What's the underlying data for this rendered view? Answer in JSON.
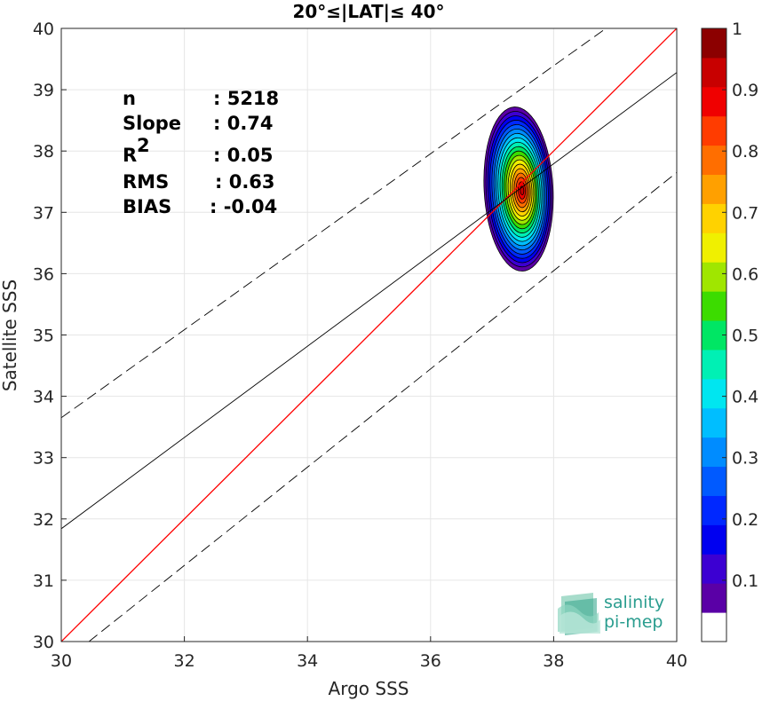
{
  "chart_data": {
    "type": "contour",
    "title": "20°≤|LAT|≤ 40°",
    "xlabel": "Argo SSS",
    "ylabel": "Satellite SSS",
    "xlim": [
      30,
      40
    ],
    "ylim": [
      30,
      40
    ],
    "xticks": [
      "30",
      "32",
      "34",
      "36",
      "38",
      "40"
    ],
    "yticks": [
      "30",
      "31",
      "32",
      "33",
      "34",
      "35",
      "36",
      "37",
      "38",
      "39",
      "40"
    ],
    "grid": true,
    "lines": [
      {
        "role": "identity",
        "color": "#ff0000",
        "style": "solid",
        "slope": 1,
        "intercept": 0
      },
      {
        "role": "regression",
        "color": "#000000",
        "style": "solid",
        "slope": 0.74,
        "points": [
          [
            30,
            31.84
          ],
          [
            40,
            39.28
          ]
        ]
      },
      {
        "role": "upper-bound",
        "color": "#000000",
        "style": "dashed",
        "points": [
          [
            30,
            33.65
          ],
          [
            38.85,
            40
          ]
        ]
      },
      {
        "role": "lower-bound",
        "color": "#000000",
        "style": "dashed",
        "points": [
          [
            30.45,
            30
          ],
          [
            40,
            37.65
          ]
        ]
      }
    ],
    "density": {
      "center": [
        37.43,
        37.38
      ],
      "outer_extent": {
        "x": [
          36.73,
          37.85
        ],
        "y": [
          36.0,
          38.68
        ]
      },
      "levels": [
        0.05,
        0.1,
        0.15,
        0.2,
        0.25,
        0.3,
        0.35,
        0.4,
        0.45,
        0.5,
        0.55,
        0.6,
        0.65,
        0.7,
        0.75,
        0.8,
        0.85,
        0.9,
        0.95
      ],
      "shown_levels": [
        0.1,
        0.2,
        0.3,
        0.4,
        0.5,
        0.6,
        0.7,
        0.8,
        0.9,
        1.0
      ]
    },
    "stats": [
      {
        "label": "n",
        "value": ": 5218"
      },
      {
        "label": "Slope",
        "value": ": 0.74"
      },
      {
        "label": "R",
        "sup": "2",
        "value": ": 0.05"
      },
      {
        "label": "RMS",
        "value": ": 0.63"
      },
      {
        "label": "BIAS",
        "value": ": -0.04"
      }
    ],
    "colorbar": {
      "range": [
        0,
        1
      ],
      "ticks": [
        "0.1",
        "0.2",
        "0.3",
        "0.4",
        "0.5",
        "0.6",
        "0.7",
        "0.8",
        "0.9",
        "1"
      ],
      "colors": [
        "#ffffff",
        "#5a00a6",
        "#3c00d2",
        "#0000f0",
        "#0028ff",
        "#005aff",
        "#008cff",
        "#00beff",
        "#00e6f0",
        "#00f0b4",
        "#00e664",
        "#3cdc00",
        "#a0e600",
        "#f0f000",
        "#ffd200",
        "#ffa000",
        "#ff6e00",
        "#ff3c00",
        "#f00000",
        "#c80000",
        "#8c0000"
      ]
    }
  },
  "logo": {
    "line1": "salinity",
    "line2": "pi-mep"
  }
}
